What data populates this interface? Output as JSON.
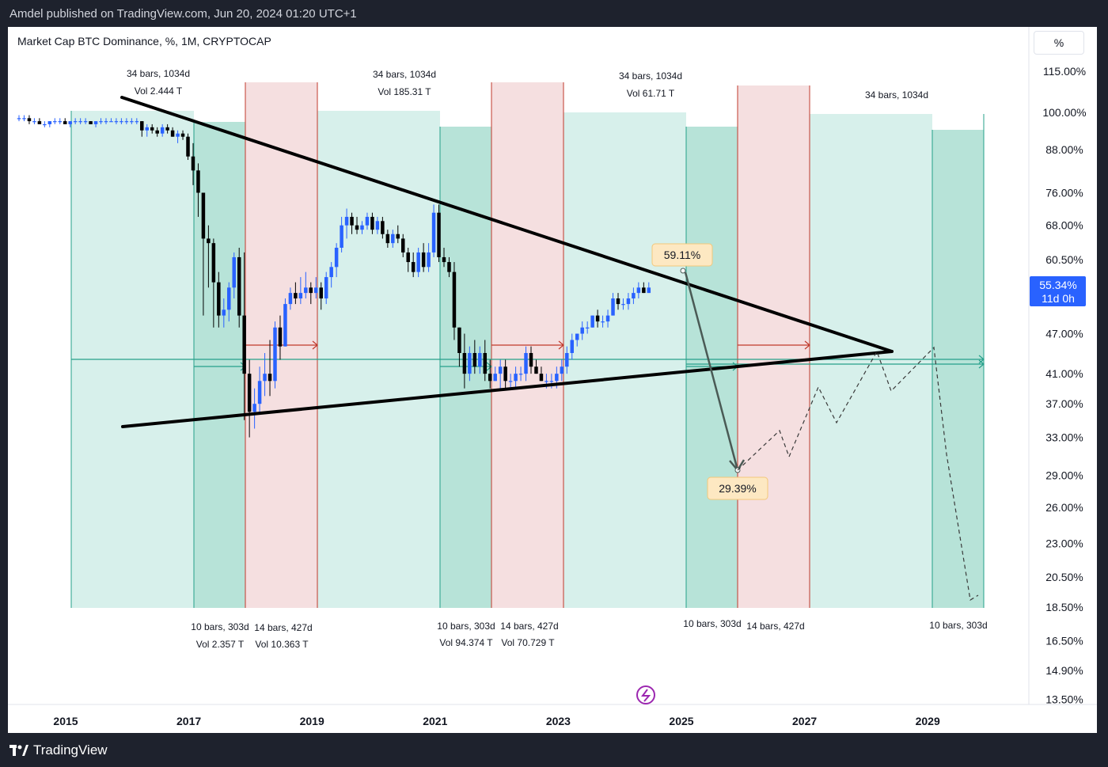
{
  "header": {
    "published": "Amdel published on TradingView.com, Jun 20, 2024 01:20 UTC+1"
  },
  "footer": {
    "brand": "TradingView"
  },
  "toolbar": {
    "unit_button": "%"
  },
  "chart_data": {
    "type": "candlestick",
    "title": "Market Cap BTC Dominance, %, 1M, CRYPTOCAP",
    "y_scale": "log",
    "x_ticks": [
      "2015",
      "2017",
      "2019",
      "2021",
      "2023",
      "2025",
      "2027",
      "2029"
    ],
    "y_ticks": [
      "115.00%",
      "100.00%",
      "88.00%",
      "76.00%",
      "68.00%",
      "60.50%",
      "47.00%",
      "41.00%",
      "37.00%",
      "33.00%",
      "29.00%",
      "26.00%",
      "23.00%",
      "20.50%",
      "18.50%",
      "16.50%",
      "14.90%",
      "13.50%"
    ],
    "last_price": {
      "value": "55.34%",
      "countdown": "11d 0h"
    },
    "annotations": {
      "cycle_top": [
        "34 bars, 1034d",
        "34 bars, 1034d",
        "34 bars, 1034d",
        "34 bars, 1034d"
      ],
      "cycle_top_vol": [
        "Vol 2.444 T",
        "Vol 185.31 T",
        "Vol 61.71 T"
      ],
      "bottom_a": [
        "10 bars, 303d",
        "10 bars, 303d",
        "10 bars, 303d",
        "10 bars, 303d"
      ],
      "bottom_b": [
        "14 bars, 427d",
        "14 bars, 427d",
        "14 bars, 427d"
      ],
      "bottom_vol_a": [
        "Vol 2.357 T",
        "Vol 94.374 T"
      ],
      "bottom_vol_b": [
        "Vol 10.363 T",
        "Vol 70.729 T"
      ],
      "target_high": "59.11%",
      "target_low": "29.39%"
    },
    "candles": [
      {
        "o": 98,
        "h": 99,
        "l": 97,
        "c": 98
      },
      {
        "o": 98,
        "h": 99,
        "l": 97,
        "c": 98
      },
      {
        "o": 98,
        "h": 99,
        "l": 96,
        "c": 97
      },
      {
        "o": 97,
        "h": 98,
        "l": 96,
        "c": 97
      },
      {
        "o": 97,
        "h": 98,
        "l": 96,
        "c": 96
      },
      {
        "o": 96,
        "h": 97,
        "l": 95,
        "c": 96
      },
      {
        "o": 96,
        "h": 97,
        "l": 95,
        "c": 97
      },
      {
        "o": 97,
        "h": 98,
        "l": 96,
        "c": 97
      },
      {
        "o": 97,
        "h": 98,
        "l": 96,
        "c": 97
      },
      {
        "o": 97,
        "h": 98,
        "l": 96,
        "c": 96
      },
      {
        "o": 96,
        "h": 97,
        "l": 95,
        "c": 97
      },
      {
        "o": 97,
        "h": 98,
        "l": 96,
        "c": 97
      },
      {
        "o": 97,
        "h": 98,
        "l": 96,
        "c": 97
      },
      {
        "o": 97,
        "h": 98,
        "l": 96,
        "c": 97
      },
      {
        "o": 97,
        "h": 97,
        "l": 96,
        "c": 96
      },
      {
        "o": 96,
        "h": 97,
        "l": 95,
        "c": 97
      },
      {
        "o": 97,
        "h": 98,
        "l": 96,
        "c": 97
      },
      {
        "o": 97,
        "h": 98,
        "l": 96,
        "c": 97
      },
      {
        "o": 97,
        "h": 98,
        "l": 97,
        "c": 97
      },
      {
        "o": 97,
        "h": 98,
        "l": 96,
        "c": 97
      },
      {
        "o": 97,
        "h": 98,
        "l": 96,
        "c": 97
      },
      {
        "o": 97,
        "h": 98,
        "l": 96,
        "c": 97
      },
      {
        "o": 97,
        "h": 98,
        "l": 96,
        "c": 97
      },
      {
        "o": 97,
        "h": 98,
        "l": 96,
        "c": 97
      },
      {
        "o": 97,
        "h": 97,
        "l": 92,
        "c": 94
      },
      {
        "o": 94,
        "h": 96,
        "l": 92,
        "c": 95
      },
      {
        "o": 95,
        "h": 96,
        "l": 93,
        "c": 94
      },
      {
        "o": 94,
        "h": 95,
        "l": 92,
        "c": 93
      },
      {
        "o": 93,
        "h": 96,
        "l": 92,
        "c": 95
      },
      {
        "o": 95,
        "h": 96,
        "l": 93,
        "c": 94
      },
      {
        "o": 94,
        "h": 95,
        "l": 92,
        "c": 92
      },
      {
        "o": 92,
        "h": 94,
        "l": 90,
        "c": 93
      },
      {
        "o": 93,
        "h": 94,
        "l": 91,
        "c": 92
      },
      {
        "o": 92,
        "h": 93,
        "l": 85,
        "c": 86
      },
      {
        "o": 86,
        "h": 90,
        "l": 78,
        "c": 82
      },
      {
        "o": 82,
        "h": 84,
        "l": 70,
        "c": 76
      },
      {
        "o": 76,
        "h": 76,
        "l": 50,
        "c": 65
      },
      {
        "o": 65,
        "h": 68,
        "l": 55,
        "c": 64
      },
      {
        "o": 64,
        "h": 65,
        "l": 48,
        "c": 56
      },
      {
        "o": 56,
        "h": 58,
        "l": 48,
        "c": 50
      },
      {
        "o": 50,
        "h": 53,
        "l": 48,
        "c": 51
      },
      {
        "o": 51,
        "h": 56,
        "l": 49,
        "c": 55
      },
      {
        "o": 55,
        "h": 62,
        "l": 53,
        "c": 61
      },
      {
        "o": 61,
        "h": 63,
        "l": 48,
        "c": 50
      },
      {
        "o": 50,
        "h": 62,
        "l": 35,
        "c": 41
      },
      {
        "o": 41,
        "h": 43,
        "l": 33,
        "c": 36
      },
      {
        "o": 36,
        "h": 39,
        "l": 34,
        "c": 37
      },
      {
        "o": 37,
        "h": 42,
        "l": 36,
        "c": 40
      },
      {
        "o": 40,
        "h": 44,
        "l": 38,
        "c": 41
      },
      {
        "o": 41,
        "h": 46,
        "l": 38,
        "c": 40
      },
      {
        "o": 40,
        "h": 49,
        "l": 39,
        "c": 48
      },
      {
        "o": 48,
        "h": 50,
        "l": 43,
        "c": 45
      },
      {
        "o": 45,
        "h": 53,
        "l": 45,
        "c": 52
      },
      {
        "o": 52,
        "h": 55,
        "l": 51,
        "c": 54
      },
      {
        "o": 54,
        "h": 56,
        "l": 52,
        "c": 53
      },
      {
        "o": 53,
        "h": 57,
        "l": 52,
        "c": 54
      },
      {
        "o": 54,
        "h": 58,
        "l": 53,
        "c": 55
      },
      {
        "o": 55,
        "h": 56,
        "l": 52,
        "c": 54
      },
      {
        "o": 54,
        "h": 57,
        "l": 53,
        "c": 55
      },
      {
        "o": 55,
        "h": 56,
        "l": 51,
        "c": 53
      },
      {
        "o": 53,
        "h": 58,
        "l": 52,
        "c": 57
      },
      {
        "o": 57,
        "h": 60,
        "l": 55,
        "c": 59
      },
      {
        "o": 59,
        "h": 64,
        "l": 57,
        "c": 63
      },
      {
        "o": 63,
        "h": 70,
        "l": 62,
        "c": 68
      },
      {
        "o": 68,
        "h": 72,
        "l": 65,
        "c": 70
      },
      {
        "o": 70,
        "h": 71,
        "l": 66,
        "c": 68
      },
      {
        "o": 68,
        "h": 70,
        "l": 66,
        "c": 67
      },
      {
        "o": 67,
        "h": 69,
        "l": 66,
        "c": 68
      },
      {
        "o": 68,
        "h": 71,
        "l": 67,
        "c": 70
      },
      {
        "o": 70,
        "h": 71,
        "l": 66,
        "c": 67
      },
      {
        "o": 67,
        "h": 70,
        "l": 66,
        "c": 69
      },
      {
        "o": 69,
        "h": 70,
        "l": 65,
        "c": 66
      },
      {
        "o": 66,
        "h": 67,
        "l": 63,
        "c": 64
      },
      {
        "o": 64,
        "h": 67,
        "l": 63,
        "c": 66
      },
      {
        "o": 66,
        "h": 68,
        "l": 64,
        "c": 65
      },
      {
        "o": 65,
        "h": 66,
        "l": 61,
        "c": 62
      },
      {
        "o": 62,
        "h": 63,
        "l": 58,
        "c": 60
      },
      {
        "o": 60,
        "h": 62,
        "l": 57,
        "c": 58
      },
      {
        "o": 58,
        "h": 63,
        "l": 57,
        "c": 62
      },
      {
        "o": 62,
        "h": 64,
        "l": 58,
        "c": 59
      },
      {
        "o": 59,
        "h": 64,
        "l": 58,
        "c": 62
      },
      {
        "o": 62,
        "h": 73,
        "l": 61,
        "c": 71
      },
      {
        "o": 71,
        "h": 73,
        "l": 60,
        "c": 61
      },
      {
        "o": 61,
        "h": 63,
        "l": 59,
        "c": 60
      },
      {
        "o": 60,
        "h": 61,
        "l": 57,
        "c": 58
      },
      {
        "o": 58,
        "h": 60,
        "l": 46,
        "c": 48
      },
      {
        "o": 48,
        "h": 48,
        "l": 42,
        "c": 44
      },
      {
        "o": 44,
        "h": 47,
        "l": 39,
        "c": 41
      },
      {
        "o": 41,
        "h": 45,
        "l": 40,
        "c": 44
      },
      {
        "o": 44,
        "h": 46,
        "l": 41,
        "c": 42
      },
      {
        "o": 42,
        "h": 45,
        "l": 41,
        "c": 44
      },
      {
        "o": 44,
        "h": 46,
        "l": 40,
        "c": 41
      },
      {
        "o": 41,
        "h": 43,
        "l": 39,
        "c": 40
      },
      {
        "o": 40,
        "h": 42,
        "l": 40,
        "c": 41
      },
      {
        "o": 41,
        "h": 43,
        "l": 39,
        "c": 42
      },
      {
        "o": 42,
        "h": 43,
        "l": 39,
        "c": 40
      },
      {
        "o": 40,
        "h": 41,
        "l": 39,
        "c": 40
      },
      {
        "o": 40,
        "h": 42,
        "l": 39,
        "c": 41
      },
      {
        "o": 41,
        "h": 42,
        "l": 40,
        "c": 41
      },
      {
        "o": 41,
        "h": 45,
        "l": 40,
        "c": 44
      },
      {
        "o": 44,
        "h": 45,
        "l": 41,
        "c": 42
      },
      {
        "o": 42,
        "h": 43,
        "l": 41,
        "c": 41
      },
      {
        "o": 41,
        "h": 42,
        "l": 40,
        "c": 40
      },
      {
        "o": 40,
        "h": 41,
        "l": 39,
        "c": 40
      },
      {
        "o": 40,
        "h": 41,
        "l": 39,
        "c": 40
      },
      {
        "o": 40,
        "h": 42,
        "l": 39,
        "c": 41
      },
      {
        "o": 41,
        "h": 43,
        "l": 40,
        "c": 42
      },
      {
        "o": 42,
        "h": 45,
        "l": 41,
        "c": 44
      },
      {
        "o": 44,
        "h": 47,
        "l": 43,
        "c": 46
      },
      {
        "o": 46,
        "h": 47,
        "l": 45,
        "c": 47
      },
      {
        "o": 47,
        "h": 49,
        "l": 46,
        "c": 48
      },
      {
        "o": 48,
        "h": 49,
        "l": 47,
        "c": 48
      },
      {
        "o": 48,
        "h": 50,
        "l": 48,
        "c": 50
      },
      {
        "o": 50,
        "h": 51,
        "l": 48,
        "c": 49
      },
      {
        "o": 49,
        "h": 50,
        "l": 48,
        "c": 49
      },
      {
        "o": 49,
        "h": 51,
        "l": 48,
        "c": 50
      },
      {
        "o": 50,
        "h": 54,
        "l": 50,
        "c": 53
      },
      {
        "o": 53,
        "h": 54,
        "l": 51,
        "c": 52
      },
      {
        "o": 52,
        "h": 53,
        "l": 51,
        "c": 52
      },
      {
        "o": 52,
        "h": 54,
        "l": 51,
        "c": 53
      },
      {
        "o": 53,
        "h": 55,
        "l": 52,
        "c": 54
      },
      {
        "o": 54,
        "h": 56,
        "l": 53,
        "c": 55
      },
      {
        "o": 55,
        "h": 56,
        "l": 54,
        "c": 54
      },
      {
        "o": 54,
        "h": 56,
        "l": 54,
        "c": 55
      }
    ]
  }
}
